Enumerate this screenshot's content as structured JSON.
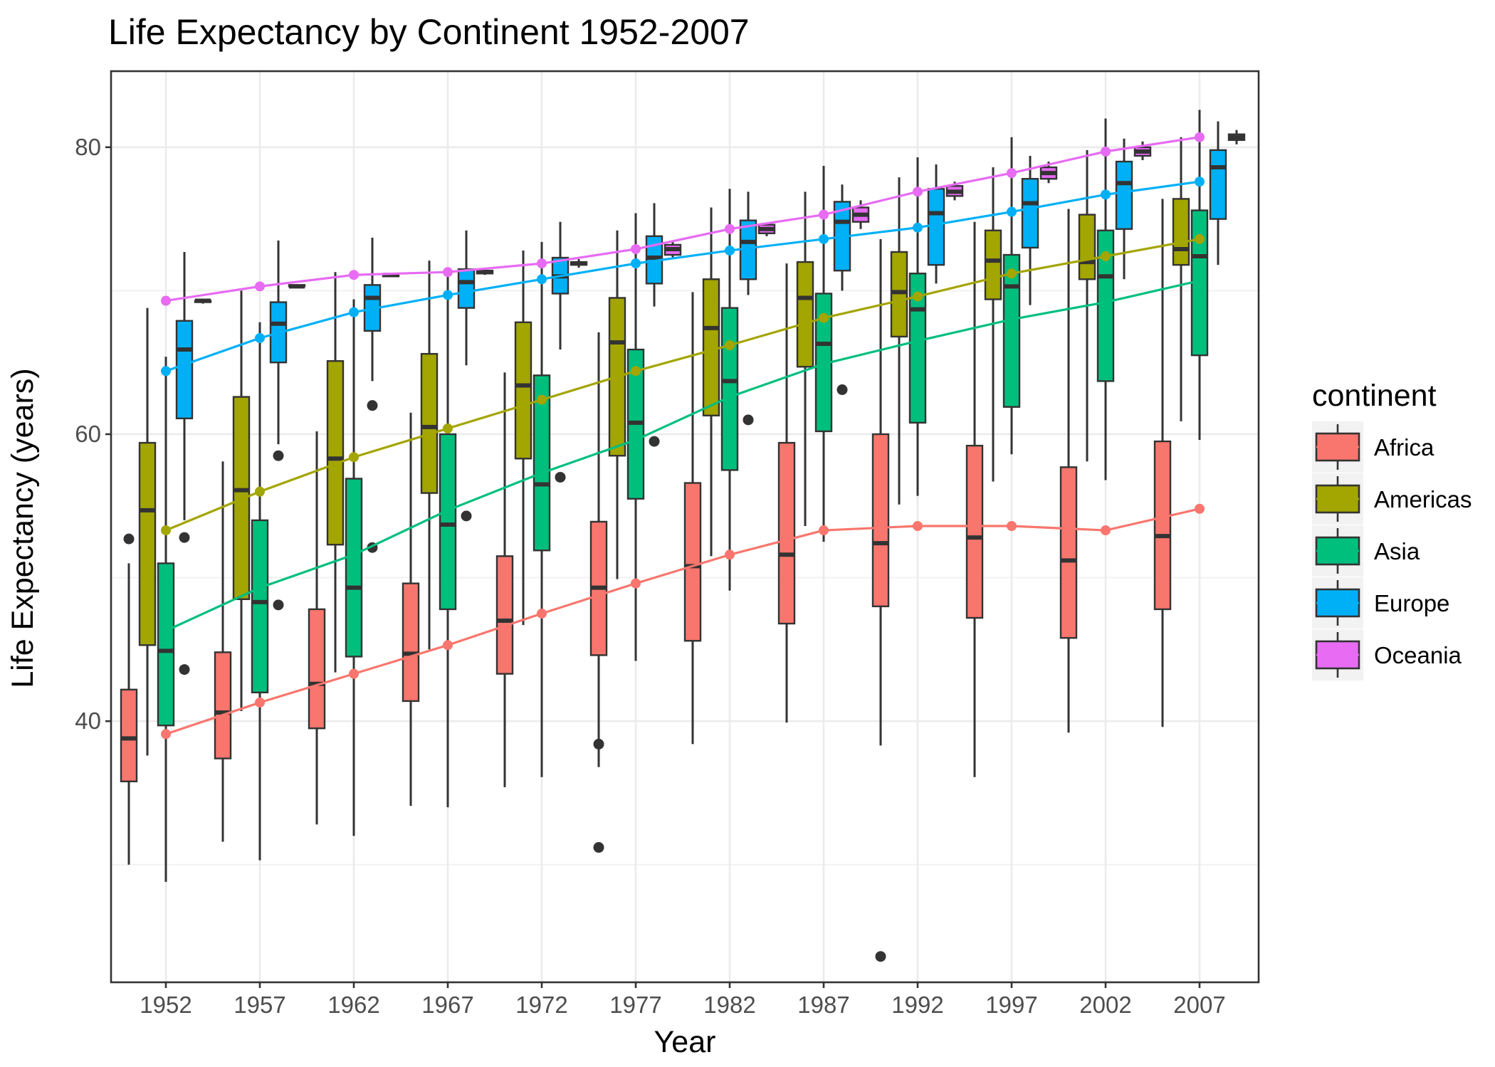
{
  "chart_data": {
    "type": "box",
    "title": "Life Expectancy by Continent 1952-2007",
    "xlabel": "Year",
    "ylabel": "Life Expectancy (years)",
    "categories": [
      "1952",
      "1957",
      "1962",
      "1967",
      "1972",
      "1977",
      "1982",
      "1987",
      "1992",
      "1997",
      "2002",
      "2007"
    ],
    "ylim": [
      21.8,
      85.3
    ],
    "yticks": [
      40,
      60,
      80
    ],
    "grid": true,
    "legend": {
      "title": "continent",
      "position": "right",
      "entries": [
        "Africa",
        "Americas",
        "Asia",
        "Europe",
        "Oceania"
      ]
    },
    "colors": {
      "Africa": "#F8766D",
      "Americas": "#A3A500",
      "Asia": "#00BF7D",
      "Europe": "#00B0F6",
      "Oceania": "#E76BF3"
    },
    "series": [
      {
        "name": "Africa",
        "mean_line": [
          39.1,
          41.3,
          43.3,
          45.3,
          47.5,
          49.6,
          51.6,
          53.3,
          53.6,
          53.6,
          53.3,
          54.8
        ],
        "boxes": [
          {
            "lw": 30.0,
            "q1": 35.8,
            "med": 38.8,
            "q3": 42.2,
            "uw": 51.0,
            "out": [
              52.7
            ]
          },
          {
            "lw": 31.6,
            "q1": 37.4,
            "med": 40.6,
            "q3": 44.8,
            "uw": 58.1,
            "out": []
          },
          {
            "lw": 32.8,
            "q1": 39.5,
            "med": 42.6,
            "q3": 47.8,
            "uw": 60.2,
            "out": []
          },
          {
            "lw": 34.1,
            "q1": 41.4,
            "med": 44.7,
            "q3": 49.6,
            "uw": 61.5,
            "out": []
          },
          {
            "lw": 35.4,
            "q1": 43.3,
            "med": 47.0,
            "q3": 51.5,
            "uw": 64.3,
            "out": []
          },
          {
            "lw": 36.8,
            "q1": 44.6,
            "med": 49.3,
            "q3": 53.9,
            "uw": 67.1,
            "out": [
              38.4,
              31.2
            ]
          },
          {
            "lw": 38.4,
            "q1": 45.6,
            "med": 50.8,
            "q3": 56.6,
            "uw": 69.9,
            "out": []
          },
          {
            "lw": 39.9,
            "q1": 46.8,
            "med": 51.6,
            "q3": 59.4,
            "uw": 71.9,
            "out": []
          },
          {
            "lw": 38.3,
            "q1": 48.0,
            "med": 52.4,
            "q3": 60.0,
            "uw": 73.6,
            "out": [
              23.6
            ]
          },
          {
            "lw": 36.1,
            "q1": 47.2,
            "med": 52.8,
            "q3": 59.2,
            "uw": 74.8,
            "out": []
          },
          {
            "lw": 39.2,
            "q1": 45.8,
            "med": 51.2,
            "q3": 57.7,
            "uw": 75.7,
            "out": []
          },
          {
            "lw": 39.6,
            "q1": 47.8,
            "med": 52.9,
            "q3": 59.5,
            "uw": 76.4,
            "out": []
          }
        ]
      },
      {
        "name": "Americas",
        "mean_line": [
          53.3,
          56.0,
          58.4,
          60.4,
          62.4,
          64.4,
          66.2,
          68.1,
          69.6,
          71.2,
          72.4,
          73.6
        ],
        "boxes": [
          {
            "lw": 37.6,
            "q1": 45.3,
            "med": 54.7,
            "q3": 59.4,
            "uw": 68.8,
            "out": []
          },
          {
            "lw": 40.7,
            "q1": 48.5,
            "med": 56.1,
            "q3": 62.6,
            "uw": 70.0,
            "out": []
          },
          {
            "lw": 43.4,
            "q1": 52.3,
            "med": 58.3,
            "q3": 65.1,
            "uw": 71.3,
            "out": []
          },
          {
            "lw": 45.0,
            "q1": 55.9,
            "med": 60.5,
            "q3": 65.6,
            "uw": 72.1,
            "out": []
          },
          {
            "lw": 46.7,
            "q1": 58.3,
            "med": 63.4,
            "q3": 67.8,
            "uw": 72.8,
            "out": []
          },
          {
            "lw": 49.9,
            "q1": 58.5,
            "med": 66.4,
            "q3": 69.5,
            "uw": 74.2,
            "out": []
          },
          {
            "lw": 51.5,
            "q1": 61.3,
            "med": 67.4,
            "q3": 70.8,
            "uw": 75.8,
            "out": []
          },
          {
            "lw": 53.6,
            "q1": 64.7,
            "med": 69.5,
            "q3": 72.0,
            "uw": 76.9,
            "out": []
          },
          {
            "lw": 55.1,
            "q1": 66.8,
            "med": 69.9,
            "q3": 72.7,
            "uw": 77.9,
            "out": []
          },
          {
            "lw": 56.7,
            "q1": 69.4,
            "med": 72.1,
            "q3": 74.2,
            "uw": 78.6,
            "out": []
          },
          {
            "lw": 58.1,
            "q1": 70.8,
            "med": 72.0,
            "q3": 75.3,
            "uw": 79.8,
            "out": []
          },
          {
            "lw": 60.9,
            "q1": 71.8,
            "med": 72.9,
            "q3": 76.4,
            "uw": 80.7,
            "out": []
          }
        ]
      },
      {
        "name": "Asia",
        "mean_line": [
          46.3,
          49.3,
          51.6,
          54.7,
          57.3,
          59.6,
          62.6,
          64.9,
          66.5,
          68.0,
          69.2,
          70.7
        ],
        "boxes": [
          {
            "lw": 28.8,
            "q1": 39.7,
            "med": 44.9,
            "q3": 51.0,
            "uw": 65.4,
            "out": []
          },
          {
            "lw": 30.3,
            "q1": 42.0,
            "med": 48.3,
            "q3": 54.0,
            "uw": 67.8,
            "out": []
          },
          {
            "lw": 32.0,
            "q1": 44.5,
            "med": 49.3,
            "q3": 56.9,
            "uw": 69.4,
            "out": []
          },
          {
            "lw": 34.0,
            "q1": 47.8,
            "med": 53.7,
            "q3": 60.0,
            "uw": 71.4,
            "out": []
          },
          {
            "lw": 36.1,
            "q1": 51.9,
            "med": 56.5,
            "q3": 64.1,
            "uw": 73.4,
            "out": []
          },
          {
            "lw": 44.2,
            "q1": 55.5,
            "med": 60.8,
            "q3": 65.9,
            "uw": 75.4,
            "out": []
          },
          {
            "lw": 49.1,
            "q1": 57.5,
            "med": 63.7,
            "q3": 68.8,
            "uw": 77.1,
            "out": []
          },
          {
            "lw": 52.5,
            "q1": 60.2,
            "med": 66.3,
            "q3": 69.8,
            "uw": 78.7,
            "out": []
          },
          {
            "lw": 55.7,
            "q1": 60.8,
            "med": 68.7,
            "q3": 71.2,
            "uw": 79.3,
            "out": []
          },
          {
            "lw": 58.6,
            "q1": 61.9,
            "med": 70.3,
            "q3": 72.5,
            "uw": 80.7,
            "out": []
          },
          {
            "lw": 56.8,
            "q1": 63.7,
            "med": 71.0,
            "q3": 74.2,
            "uw": 82.0,
            "out": []
          },
          {
            "lw": 59.6,
            "q1": 65.5,
            "med": 72.4,
            "q3": 75.6,
            "uw": 82.6,
            "out": []
          }
        ]
      },
      {
        "name": "Europe",
        "mean_line": [
          64.4,
          66.7,
          68.5,
          69.7,
          70.8,
          71.9,
          72.8,
          73.6,
          74.4,
          75.5,
          76.7,
          77.6
        ],
        "boxes": [
          {
            "lw": 54.0,
            "q1": 61.1,
            "med": 65.9,
            "q3": 67.9,
            "uw": 72.7,
            "out": [
              52.8,
              43.6
            ]
          },
          {
            "lw": 59.3,
            "q1": 65.0,
            "med": 67.7,
            "q3": 69.2,
            "uw": 73.5,
            "out": [
              58.5,
              48.1
            ]
          },
          {
            "lw": 63.7,
            "q1": 67.2,
            "med": 69.5,
            "q3": 70.4,
            "uw": 73.7,
            "out": [
              62.0,
              52.1
            ]
          },
          {
            "lw": 64.8,
            "q1": 68.8,
            "med": 70.6,
            "q3": 71.5,
            "uw": 74.2,
            "out": [
              54.3
            ]
          },
          {
            "lw": 65.9,
            "q1": 69.8,
            "med": 71.0,
            "q3": 72.3,
            "uw": 74.8,
            "out": [
              57.0
            ]
          },
          {
            "lw": 68.9,
            "q1": 70.5,
            "med": 72.3,
            "q3": 73.8,
            "uw": 76.1,
            "out": [
              59.5
            ]
          },
          {
            "lw": 69.7,
            "q1": 70.8,
            "med": 73.4,
            "q3": 74.9,
            "uw": 76.9,
            "out": [
              61.0
            ]
          },
          {
            "lw": 70.0,
            "q1": 71.4,
            "med": 74.8,
            "q3": 76.2,
            "uw": 77.4,
            "out": [
              63.1
            ]
          },
          {
            "lw": 70.5,
            "q1": 71.8,
            "med": 75.4,
            "q3": 77.1,
            "uw": 78.8,
            "out": []
          },
          {
            "lw": 69.0,
            "q1": 73.0,
            "med": 76.1,
            "q3": 77.8,
            "uw": 79.4,
            "out": []
          },
          {
            "lw": 70.8,
            "q1": 74.3,
            "med": 77.5,
            "q3": 79.0,
            "uw": 80.6,
            "out": []
          },
          {
            "lw": 71.8,
            "q1": 75.0,
            "med": 78.6,
            "q3": 79.8,
            "uw": 81.8,
            "out": []
          }
        ]
      },
      {
        "name": "Oceania",
        "mean_line": [
          69.3,
          70.3,
          71.1,
          71.3,
          71.9,
          72.9,
          74.3,
          75.3,
          76.9,
          78.2,
          79.7,
          80.7
        ],
        "boxes": [
          {
            "lw": 69.1,
            "q1": 69.2,
            "med": 69.3,
            "q3": 69.3,
            "uw": 69.4,
            "out": []
          },
          {
            "lw": 70.3,
            "q1": 70.3,
            "med": 70.3,
            "q3": 70.4,
            "uw": 70.4,
            "out": []
          },
          {
            "lw": 71.0,
            "q1": 71.0,
            "med": 71.1,
            "q3": 71.1,
            "uw": 71.2,
            "out": []
          },
          {
            "lw": 71.1,
            "q1": 71.2,
            "med": 71.3,
            "q3": 71.4,
            "uw": 71.5,
            "out": []
          },
          {
            "lw": 71.6,
            "q1": 71.8,
            "med": 71.9,
            "q3": 72.0,
            "uw": 72.2,
            "out": []
          },
          {
            "lw": 72.2,
            "q1": 72.5,
            "med": 72.9,
            "q3": 73.2,
            "uw": 73.5,
            "out": []
          },
          {
            "lw": 73.8,
            "q1": 74.0,
            "med": 74.3,
            "q3": 74.6,
            "uw": 74.7,
            "out": []
          },
          {
            "lw": 74.3,
            "q1": 74.8,
            "med": 75.3,
            "q3": 75.8,
            "uw": 76.3,
            "out": []
          },
          {
            "lw": 76.3,
            "q1": 76.6,
            "med": 76.9,
            "q3": 77.3,
            "uw": 77.6,
            "out": []
          },
          {
            "lw": 77.5,
            "q1": 77.8,
            "med": 78.2,
            "q3": 78.6,
            "uw": 79.0,
            "out": []
          },
          {
            "lw": 79.1,
            "q1": 79.4,
            "med": 79.7,
            "q3": 80.0,
            "uw": 80.4,
            "out": []
          },
          {
            "lw": 80.2,
            "q1": 80.5,
            "med": 80.7,
            "q3": 80.9,
            "uw": 81.2,
            "out": []
          }
        ]
      }
    ]
  }
}
